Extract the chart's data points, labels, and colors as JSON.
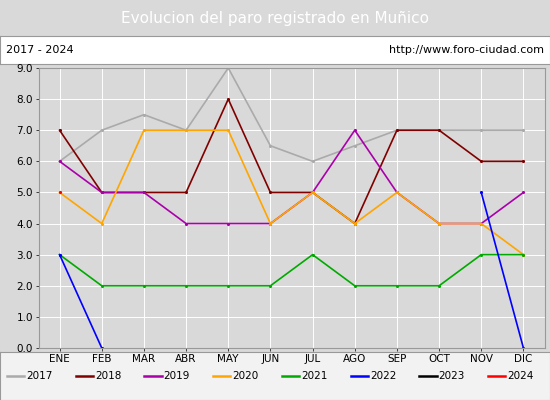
{
  "title": "Evolucion del paro registrado en Muñico",
  "subtitle_left": "2017 - 2024",
  "subtitle_right": "http://www.foro-ciudad.com",
  "months": [
    "ENE",
    "FEB",
    "MAR",
    "ABR",
    "MAY",
    "JUN",
    "JUL",
    "AGO",
    "SEP",
    "OCT",
    "NOV",
    "DIC"
  ],
  "ylim": [
    0.0,
    9.0
  ],
  "yticks": [
    0.0,
    1.0,
    2.0,
    3.0,
    4.0,
    5.0,
    6.0,
    7.0,
    8.0,
    9.0
  ],
  "series": {
    "2017": {
      "color": "#aaaaaa",
      "values": [
        6.0,
        7.0,
        7.5,
        7.0,
        9.0,
        6.5,
        6.0,
        6.5,
        7.0,
        7.0,
        7.0,
        7.0
      ]
    },
    "2018": {
      "color": "#800000",
      "values": [
        7.0,
        5.0,
        5.0,
        5.0,
        8.0,
        5.0,
        5.0,
        4.0,
        7.0,
        7.0,
        6.0,
        6.0
      ]
    },
    "2019": {
      "color": "#aa00aa",
      "values": [
        6.0,
        5.0,
        5.0,
        4.0,
        4.0,
        4.0,
        5.0,
        7.0,
        5.0,
        4.0,
        4.0,
        5.0
      ]
    },
    "2020": {
      "color": "#ffa500",
      "values": [
        5.0,
        4.0,
        7.0,
        7.0,
        7.0,
        4.0,
        5.0,
        4.0,
        5.0,
        4.0,
        4.0,
        3.0
      ]
    },
    "2021": {
      "color": "#00aa00",
      "values": [
        3.0,
        2.0,
        2.0,
        2.0,
        2.0,
        2.0,
        3.0,
        2.0,
        2.0,
        2.0,
        3.0,
        3.0
      ]
    },
    "2022": {
      "color": "#0000ff",
      "values": [
        3.0,
        0.0,
        null,
        null,
        null,
        null,
        null,
        null,
        null,
        null,
        5.0,
        0.0
      ]
    },
    "2023": {
      "color": "#000000",
      "values": [
        null,
        null,
        null,
        null,
        null,
        null,
        null,
        null,
        null,
        null,
        null,
        null
      ]
    },
    "2024": {
      "color": "#ff0000",
      "values": [
        5.0,
        null,
        null,
        null,
        null,
        null,
        null,
        null,
        null,
        null,
        null,
        null
      ]
    }
  },
  "title_bg_color": "#4f81bd",
  "title_text_color": "#ffffff",
  "subtitle_bg_color": "#ffffff",
  "plot_bg_color": "#d9d9d9",
  "fig_bg_color": "#d9d9d9",
  "legend_bg_color": "#f2f2f2"
}
